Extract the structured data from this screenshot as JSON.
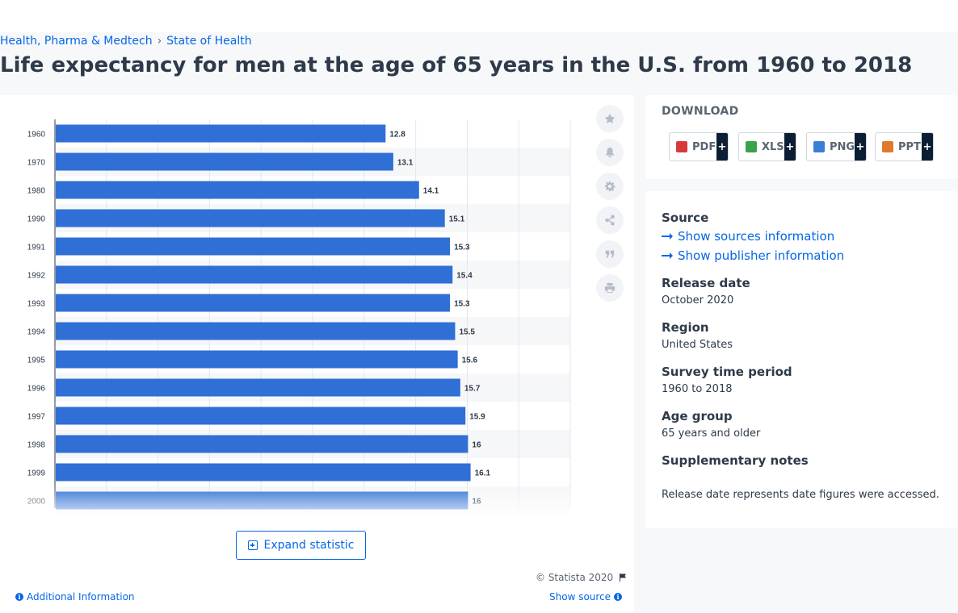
{
  "breadcrumb": {
    "items": [
      "Health, Pharma & Medtech",
      "State of Health"
    ],
    "separator": "›"
  },
  "page_title": "Life expectancy for men at the age of 65 years in the U.S. from 1960 to 2018",
  "chart": {
    "expand_label": "Expand statistic",
    "copyright": "© Statista 2020",
    "additional_info": "Additional Information",
    "show_source": "Show source",
    "toolbar_icons": [
      "star-icon",
      "bell-icon",
      "gear-icon",
      "share-icon",
      "quote-icon",
      "print-icon"
    ]
  },
  "chart_data": {
    "type": "bar",
    "orientation": "horizontal",
    "categories": [
      "1960",
      "1970",
      "1980",
      "1990",
      "1991",
      "1992",
      "1993",
      "1994",
      "1995",
      "1996",
      "1997",
      "1998",
      "1999",
      "2000"
    ],
    "values": [
      12.8,
      13.1,
      14.1,
      15.1,
      15.3,
      15.4,
      15.3,
      15.5,
      15.6,
      15.7,
      15.9,
      16,
      16.1,
      16
    ],
    "value_labels": [
      "12.8",
      "13.1",
      "14.1",
      "15.1",
      "15.3",
      "15.4",
      "15.3",
      "15.5",
      "15.6",
      "15.7",
      "15.9",
      "16",
      "16.1",
      "16"
    ],
    "xlim": [
      0,
      20
    ],
    "grid": true,
    "bar_color": "#2f6fd6",
    "fade_last_row": true
  },
  "download": {
    "title": "DOWNLOAD",
    "buttons": [
      {
        "label": "PDF",
        "icon": "pdf-file-icon",
        "color": "#d63a3a"
      },
      {
        "label": "XLS",
        "icon": "xls-file-icon",
        "color": "#3aa24a"
      },
      {
        "label": "PNG",
        "icon": "png-file-icon",
        "color": "#3a7fd6"
      },
      {
        "label": "PPT",
        "icon": "ppt-file-icon",
        "color": "#e07a2a"
      }
    ],
    "plus": "+"
  },
  "info": {
    "source_label": "Source",
    "sources_link": "Show sources information",
    "publisher_link": "Show publisher information",
    "release_label": "Release date",
    "release_value": "October 2020",
    "region_label": "Region",
    "region_value": "United States",
    "survey_label": "Survey time period",
    "survey_value": "1960 to 2018",
    "age_label": "Age group",
    "age_value": "65 years and older",
    "notes_label": "Supplementary notes",
    "notes_value": "Release date represents date figures were accessed."
  }
}
